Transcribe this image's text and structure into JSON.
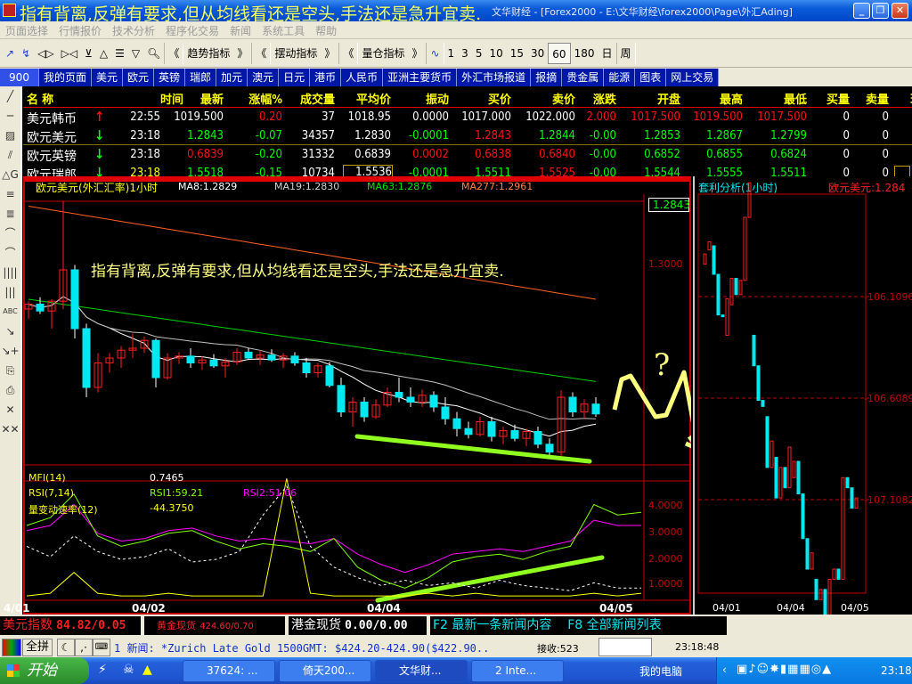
{
  "window": {
    "title": "文华财经 - [Forex2000 - E:\\文华财经\\forex2000\\Page\\外汇Ading]",
    "overlay_note": "指有背离,反弹有要求,但从均线看还是空头,手法还是急升宜卖.",
    "buttons": [
      "_",
      "❐",
      "✕"
    ]
  },
  "menu": [
    "页面选择",
    "行情报价",
    "技术分析",
    "程序化交易",
    "新闻",
    "系统工具",
    "帮助"
  ],
  "toolbar": {
    "draw_icons": [
      "draw-up-icon",
      "draw-down-icon",
      "expand-icon",
      "shrink-icon",
      "ma-icon",
      "triangle-up-icon",
      "stack-icon",
      "triangle-down-icon",
      "zoom-icon"
    ],
    "groups": [
      {
        "prev": "《",
        "label": "趋势指标",
        "next": "》"
      },
      {
        "prev": "《",
        "label": "摆动指标",
        "next": "》"
      },
      {
        "prev": "《",
        "label": "量仓指标",
        "next": "》"
      }
    ],
    "periods": [
      "1",
      "3",
      "5",
      "10",
      "15",
      "30",
      "60",
      "180",
      "日",
      "周"
    ],
    "selected_period": "60"
  },
  "tabs": [
    "900",
    "我的页面",
    "美元",
    "欧元",
    "英镑",
    "瑞郎",
    "加元",
    "澳元",
    "日元",
    "港币",
    "人民币",
    "亚洲主要货币",
    "外汇市场报道",
    "报摘",
    "贵金属",
    "能源",
    "图表",
    "网上交易"
  ],
  "left_tools": [
    "╱",
    "─",
    "▨",
    "⫽",
    "△G",
    "≡",
    "≣",
    "⌒",
    "⌒",
    "||||",
    "|||",
    "ABC",
    "↘",
    "↘+",
    "⎘",
    "⎙",
    "✕",
    "✕✕"
  ],
  "colors": {
    "up": "#ff0000",
    "down": "#00ff00",
    "flat": "#ffffff",
    "header": "#ffff00",
    "cyan": "#00e8f0",
    "yellow": "#ffff00"
  },
  "quotes": {
    "headers": [
      "名 称",
      "时间",
      "最新",
      "涨幅%",
      "成交量",
      "平均价",
      "振动",
      "买价",
      "卖价",
      "涨跌",
      "开盘",
      "最高",
      "最低",
      "买量",
      "卖量",
      "现"
    ],
    "rows": [
      {
        "name": "美元韩币",
        "dir": "up",
        "cells": [
          [
            "22:55",
            "w"
          ],
          [
            "1019.500",
            "w"
          ],
          [
            "0.20",
            "r"
          ],
          [
            "37",
            "w"
          ],
          [
            "1018.95",
            "w"
          ],
          [
            "0.0000",
            "w"
          ],
          [
            "1017.000",
            "w"
          ],
          [
            "1022.000",
            "w"
          ],
          [
            "2.000",
            "r"
          ],
          [
            "1017.500",
            "r"
          ],
          [
            "1019.500",
            "r"
          ],
          [
            "1017.500",
            "r"
          ],
          [
            "0",
            "w"
          ],
          [
            "0",
            "w"
          ]
        ]
      },
      {
        "name": "欧元美元",
        "dir": "down",
        "cells": [
          [
            "23:18",
            "w"
          ],
          [
            "1.2843",
            "g"
          ],
          [
            "-0.07",
            "g"
          ],
          [
            "34357",
            "w"
          ],
          [
            "1.2830",
            "w"
          ],
          [
            "-0.0001",
            "g"
          ],
          [
            "1.2843",
            "r"
          ],
          [
            "1.2844",
            "g"
          ],
          [
            "-0.00",
            "g"
          ],
          [
            "1.2853",
            "g"
          ],
          [
            "1.2867",
            "g"
          ],
          [
            "1.2799",
            "g"
          ],
          [
            "0",
            "w"
          ],
          [
            "0",
            "w"
          ]
        ]
      },
      {
        "name": "欧元英镑",
        "dir": "down",
        "cells": [
          [
            "23:18",
            "w"
          ],
          [
            "0.6839",
            "r"
          ],
          [
            "-0.20",
            "g"
          ],
          [
            "31332",
            "w"
          ],
          [
            "0.6839",
            "w"
          ],
          [
            "0.0002",
            "r"
          ],
          [
            "0.6838",
            "r"
          ],
          [
            "0.6840",
            "r"
          ],
          [
            "-0.00",
            "g"
          ],
          [
            "0.6852",
            "g"
          ],
          [
            "0.6855",
            "g"
          ],
          [
            "0.6824",
            "g"
          ],
          [
            "0",
            "w"
          ],
          [
            "0",
            "w"
          ]
        ]
      },
      {
        "name": "欧元瑞郎",
        "dir": "down",
        "cells": [
          [
            "23:18",
            "y"
          ],
          [
            "1.5518",
            "g"
          ],
          [
            "-0.15",
            "g"
          ],
          [
            "10734",
            "w"
          ],
          [
            "1.5536",
            "w"
          ],
          [
            "-0.0001",
            "g"
          ],
          [
            "1.5511",
            "g"
          ],
          [
            "1.5525",
            "r"
          ],
          [
            "-0.00",
            "g"
          ],
          [
            "1.5544",
            "g"
          ],
          [
            "1.5555",
            "g"
          ],
          [
            "1.5511",
            "g"
          ],
          [
            "0",
            "w"
          ],
          [
            "0",
            "w"
          ]
        ]
      }
    ]
  },
  "main_chart": {
    "title": "欧元美元(外汇汇率)1小时",
    "ma_labels": [
      {
        "text": "MA8:1.2829",
        "color": "#ffffff"
      },
      {
        "text": "MA19:1.2830",
        "color": "#d0d0d0"
      },
      {
        "text": "MA63:1.2876",
        "color": "#00e000"
      },
      {
        "text": "MA277:1.2961",
        "color": "#ff8040"
      }
    ],
    "last_price": "1.2843",
    "axis_label": "1.3000",
    "annotation": "指有背离,反弹有要求,但从均线看还是空头,手法还是急升宜卖.",
    "question_mark": "?",
    "candles": [
      [
        1.295,
        1.2958,
        1.294,
        1.2955
      ],
      [
        1.2955,
        1.2962,
        1.2945,
        1.2948
      ],
      [
        1.2948,
        1.296,
        1.293,
        1.2958
      ],
      [
        1.2958,
        1.306,
        1.295,
        1.299
      ],
      [
        1.299,
        1.2995,
        1.292,
        1.293
      ],
      [
        1.293,
        1.2935,
        1.286,
        1.287
      ],
      [
        1.287,
        1.2905,
        1.2865,
        1.2895
      ],
      [
        1.2895,
        1.2905,
        1.2885,
        1.29
      ],
      [
        1.29,
        1.2912,
        1.289,
        1.2908
      ],
      [
        1.2908,
        1.2925,
        1.29,
        1.291
      ],
      [
        1.291,
        1.2922,
        1.2905,
        1.2918
      ],
      [
        1.2918,
        1.292,
        1.287,
        1.288
      ],
      [
        1.288,
        1.2905,
        1.2878,
        1.29
      ],
      [
        1.29,
        1.2906,
        1.2894,
        1.2902
      ],
      [
        1.2902,
        1.291,
        1.289,
        1.2895
      ],
      [
        1.2895,
        1.2902,
        1.2888,
        1.2898
      ],
      [
        1.2898,
        1.2904,
        1.289,
        1.2892
      ],
      [
        1.2892,
        1.29,
        1.288,
        1.2896
      ],
      [
        1.2896,
        1.291,
        1.2893,
        1.2906
      ],
      [
        1.2906,
        1.291,
        1.2898,
        1.29
      ],
      [
        1.29,
        1.2908,
        1.2893,
        1.2903
      ],
      [
        1.2903,
        1.2909,
        1.2896,
        1.2898
      ],
      [
        1.2898,
        1.2905,
        1.289,
        1.2902
      ],
      [
        1.2902,
        1.2906,
        1.2892,
        1.2895
      ],
      [
        1.2895,
        1.29,
        1.288,
        1.2885
      ],
      [
        1.2885,
        1.2895,
        1.288,
        1.2892
      ],
      [
        1.2892,
        1.2896,
        1.287,
        1.2872
      ],
      [
        1.2872,
        1.288,
        1.284,
        1.2845
      ],
      [
        1.2845,
        1.286,
        1.283,
        1.2855
      ],
      [
        1.2855,
        1.286,
        1.2835,
        1.284
      ],
      [
        1.284,
        1.2858,
        1.2838,
        1.2852
      ],
      [
        1.2852,
        1.287,
        1.285,
        1.2865
      ],
      [
        1.2865,
        1.288,
        1.2855,
        1.286
      ],
      [
        1.286,
        1.287,
        1.285,
        1.2855
      ],
      [
        1.2855,
        1.2868,
        1.285,
        1.2862
      ],
      [
        1.2862,
        1.2866,
        1.2845,
        1.285
      ],
      [
        1.285,
        1.286,
        1.2832,
        1.2838
      ],
      [
        1.2838,
        1.2845,
        1.282,
        1.2828
      ],
      [
        1.2828,
        1.2835,
        1.2818,
        1.2822
      ],
      [
        1.2822,
        1.284,
        1.282,
        1.2835
      ],
      [
        1.2835,
        1.284,
        1.2815,
        1.282
      ],
      [
        1.282,
        1.283,
        1.2812,
        1.2826
      ],
      [
        1.2826,
        1.2832,
        1.2815,
        1.2818
      ],
      [
        1.2818,
        1.2828,
        1.281,
        1.2825
      ],
      [
        1.2825,
        1.283,
        1.2808,
        1.2812
      ],
      [
        1.2812,
        1.2818,
        1.2799,
        1.2804
      ],
      [
        1.2804,
        1.2867,
        1.28,
        1.286
      ],
      [
        1.286,
        1.2865,
        1.284,
        1.2845
      ],
      [
        1.2845,
        1.2858,
        1.2838,
        1.2853
      ],
      [
        1.2853,
        1.286,
        1.284,
        1.2843
      ]
    ],
    "ma277": [
      1.3055,
      1.296
    ],
    "ma63": [
      1.296,
      1.2876
    ],
    "indicators": {
      "mfi_label": "MFI(14)",
      "mfi_value": "0.7465",
      "rsi_label": "RSI(7,14)",
      "rsi1": "RSI1:59.21",
      "rsi2": "RSI2:51.06",
      "roc_label": "量变动速率(12)",
      "roc_value": "-44.3750",
      "axis": [
        "4.0000",
        "3.0000",
        "2.0000",
        "1.0000"
      ],
      "rsi1_series": [
        2.8,
        3.1,
        4.0,
        2.4,
        2.0,
        2.2,
        2.5,
        2.6,
        2.2,
        1.9,
        2.1,
        2.0,
        1.8,
        2.3,
        1.2,
        0.7,
        0.4,
        0.8,
        1.4,
        1.6,
        1.7,
        1.5,
        1.8,
        2.0,
        3.6,
        3.2,
        3.3
      ],
      "rsi2_series": [
        2.6,
        2.8,
        3.6,
        2.5,
        2.2,
        2.3,
        2.6,
        2.7,
        2.4,
        2.2,
        2.3,
        2.2,
        2.1,
        2.3,
        1.7,
        1.3,
        1.0,
        1.3,
        1.7,
        1.8,
        1.9,
        1.8,
        2.0,
        2.2,
        3.0,
        2.8,
        2.8
      ],
      "roc_series": [
        0.1,
        0.2,
        1.0,
        0.2,
        0.1,
        0.1,
        0.2,
        0.1,
        0.1,
        0.1,
        0.1,
        4.6,
        0.2,
        0.1,
        0.1,
        0.1,
        0.1,
        0.2,
        0.1,
        0.2,
        0.1,
        0.1,
        0.1,
        0.1,
        0.2,
        0.1,
        0.2
      ],
      "mfi_series": [
        2.0,
        1.6,
        2.4,
        1.8,
        1.5,
        1.6,
        1.9,
        1.4,
        1.5,
        1.8,
        3.2,
        4.3,
        2.0,
        1.2,
        0.8,
        0.5,
        0.7,
        0.5,
        0.6,
        0.4,
        0.7,
        0.5,
        0.4,
        0.3,
        0.6,
        0.4,
        0.4
      ]
    },
    "dates": [
      "4/01",
      "04/02",
      "04/04",
      "04/05"
    ]
  },
  "arb_chart": {
    "title": "套利分析(1小时)",
    "pair": "欧元美元:1.284",
    "axis": [
      "-106.1096",
      "-106.6089",
      "-107.1082"
    ],
    "dates": [
      "04/01",
      "04/04",
      "04/05"
    ],
    "bars": [
      [
        -105.95,
        -105.9
      ],
      [
        -105.88,
        -105.84
      ],
      [
        -105.86,
        -106.0
      ],
      [
        -106.0,
        -106.2
      ],
      [
        -106.2,
        -106.2
      ],
      [
        -106.3,
        -106.12
      ],
      [
        -106.15,
        -106.02
      ],
      [
        -106.02,
        -106.1
      ],
      [
        -106.1,
        -106.03
      ],
      [
        -106.03,
        -105.72
      ],
      [
        -105.72,
        -105.55
      ],
      [
        -106.3,
        -106.45
      ],
      [
        -106.45,
        -106.62
      ],
      [
        -106.62,
        -106.65
      ],
      [
        -106.7,
        -106.95
      ],
      [
        -106.95,
        -106.82
      ],
      [
        -106.9,
        -107.1
      ],
      [
        -107.1,
        -106.95
      ],
      [
        -106.95,
        -107.05
      ],
      [
        -107.05,
        -106.85
      ],
      [
        -107.0,
        -106.92
      ],
      [
        -106.92,
        -107.08
      ],
      [
        -107.08,
        -107.3
      ],
      [
        -107.3,
        -107.45
      ],
      [
        -107.45,
        -107.37
      ],
      [
        -107.5,
        -107.6
      ],
      [
        -107.6,
        -107.55
      ],
      [
        -107.55,
        -107.85
      ],
      [
        -107.85,
        -107.5
      ],
      [
        -107.5,
        -107.45
      ],
      [
        -107.45,
        -107.5
      ],
      [
        -107.5,
        -107.0
      ],
      [
        -107.0,
        -107.05
      ],
      [
        -107.05,
        -107.15
      ],
      [
        -107.15,
        -107.1
      ]
    ]
  },
  "status": {
    "usd_index_label": "美元指数",
    "usd_index_value": "84.82/0.05",
    "gold_label": "黄金现货",
    "gold_value": "424.60/0.70",
    "hk_gold_label": "港金现货",
    "hk_gold_value": "0.00/0.00",
    "f2": "F2 最新一条新闻内容",
    "f8": "F8 全部新闻列表"
  },
  "newsbar": {
    "ime_mode": "全拼",
    "news": "1 新闻: *Zurich Late Gold 1500GMT: $424.20-424.90($422.90..",
    "recv_label": "接收:523",
    "time": "23:18:48"
  },
  "taskbar": {
    "start": "开始",
    "tasks": [
      "37624: ...",
      "倚天200...",
      "文华财...",
      "2 Inte..."
    ],
    "desktop": "我的电脑",
    "clock": "23:18"
  }
}
